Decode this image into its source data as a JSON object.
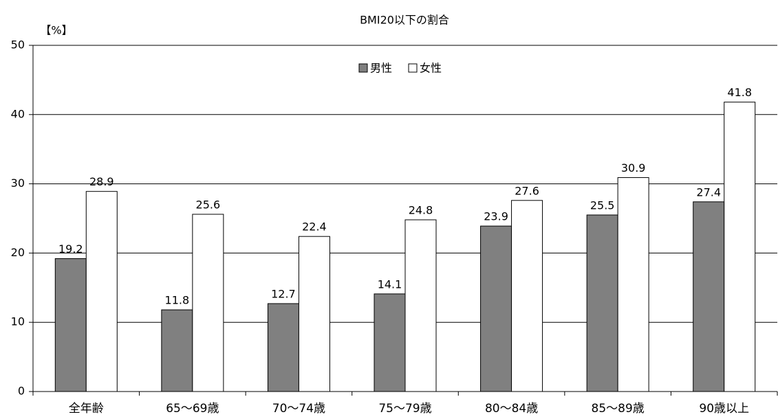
{
  "chart_data": {
    "type": "bar",
    "title": "BMI20以下の割合",
    "y_label": "【%】",
    "categories": [
      "全年齢",
      "65〜69歳",
      "70〜74歳",
      "75〜79歳",
      "80〜84歳",
      "85〜89歳",
      "90歳以上"
    ],
    "series": [
      {
        "name": "男性",
        "color": "#808080",
        "values": [
          19.2,
          11.8,
          12.7,
          14.1,
          23.9,
          25.5,
          27.4
        ]
      },
      {
        "name": "女性",
        "color": "#ffffff",
        "values": [
          28.9,
          25.6,
          22.4,
          24.8,
          27.6,
          30.9,
          41.8
        ]
      }
    ],
    "ylim": [
      0,
      50
    ],
    "yticks": [
      0,
      10,
      20,
      30,
      40,
      50
    ],
    "grid": true,
    "legend": "top"
  }
}
